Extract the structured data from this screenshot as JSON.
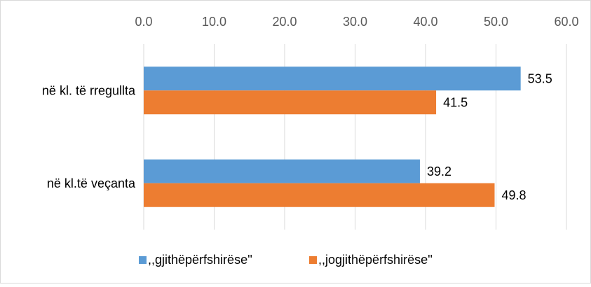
{
  "chart_data": {
    "type": "bar",
    "orientation": "horizontal",
    "categories": [
      "në kl. të rregullta",
      "në kl.të veçanta"
    ],
    "series": [
      {
        "name": ",,gjithëpërfshirëse''",
        "color": "#5B9BD5",
        "values": [
          53.5,
          39.2
        ]
      },
      {
        "name": ",,jogjithëpërfshirëse''",
        "color": "#ED7D31",
        "values": [
          41.5,
          49.8
        ]
      }
    ],
    "xlim": [
      0,
      60
    ],
    "ticks": [
      "0.0",
      "10.0",
      "20.0",
      "30.0",
      "40.0",
      "50.0",
      "60.0"
    ],
    "data_labels": [
      [
        "53.5",
        "39.2"
      ],
      [
        "41.5",
        "49.8"
      ]
    ],
    "axis_position": "top",
    "grid": true,
    "legend_position": "bottom",
    "title": "",
    "xlabel": "",
    "ylabel": ""
  }
}
